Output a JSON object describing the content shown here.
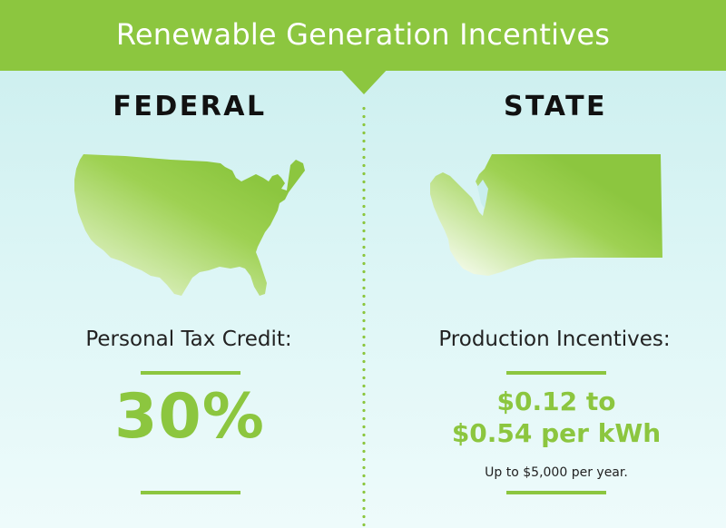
{
  "title": "Renewable Generation Incentives",
  "federal": {
    "heading": "FEDERAL",
    "map_icon": "usa-map-icon",
    "label": "Personal Tax Credit:",
    "value": "30%"
  },
  "state": {
    "heading": "STATE",
    "map_icon": "washington-state-map-icon",
    "label": "Production Incentives:",
    "value_line1": "$0.12 to",
    "value_line2": "$0.54 per kWh",
    "note": "Up to $5,000 per year."
  },
  "colors": {
    "accent_green": "#8cc63f",
    "background_teal": "#c9eeee",
    "text_dark": "#111111"
  }
}
